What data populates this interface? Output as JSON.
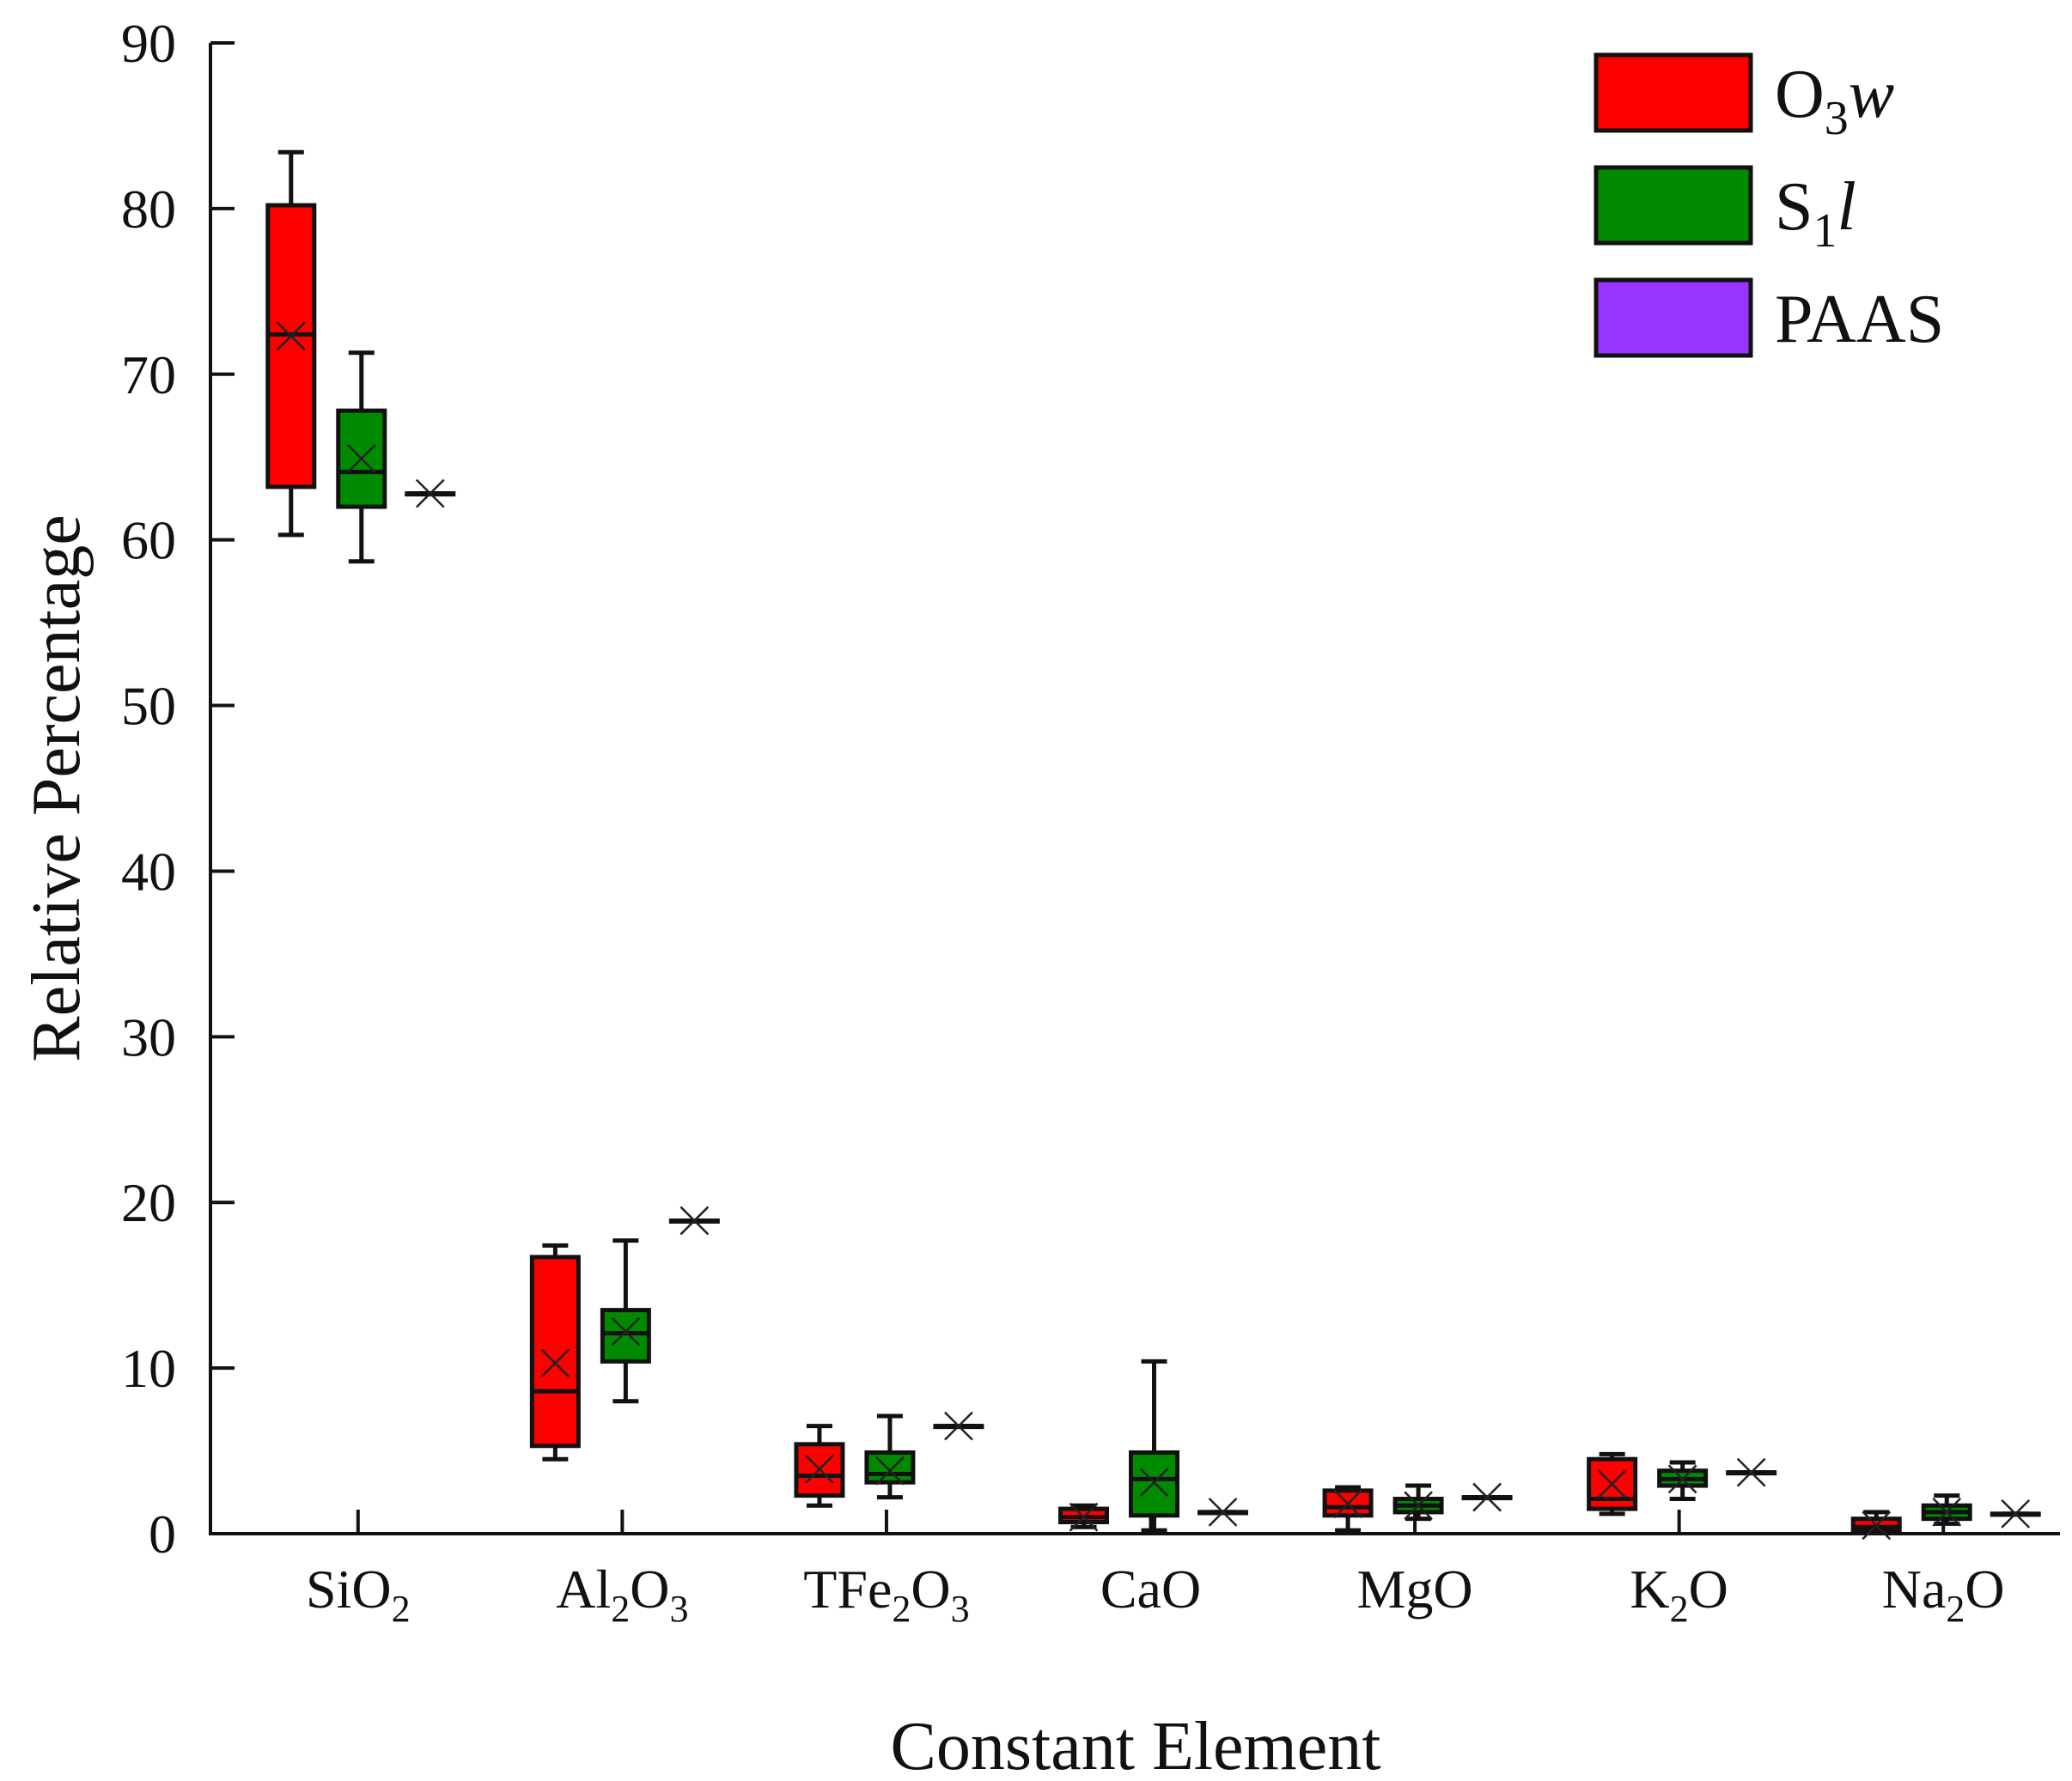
{
  "chart_data": {
    "type": "box",
    "xlabel": "Constant Element",
    "ylabel": "Relative Percentage",
    "ylim": [
      0,
      90
    ],
    "yticks": [
      0,
      10,
      20,
      30,
      40,
      50,
      60,
      70,
      80,
      90
    ],
    "ytick_labels": [
      "0",
      "10",
      "20",
      "30",
      "40",
      "50",
      "60",
      "70",
      "80",
      "90"
    ],
    "grid": false,
    "legend_position": "top-right",
    "categories": [
      {
        "base": "SiO",
        "sub": "2",
        "base2": "",
        "sub2": ""
      },
      {
        "base": "Al",
        "sub": "2",
        "base2": "O",
        "sub2": "3"
      },
      {
        "base": "TFe",
        "sub": "2",
        "base2": "O",
        "sub2": "3"
      },
      {
        "base": "CaO",
        "sub": "",
        "base2": "",
        "sub2": ""
      },
      {
        "base": "MgO",
        "sub": "",
        "base2": "",
        "sub2": ""
      },
      {
        "base": "K",
        "sub": "2",
        "base2": "O",
        "sub2": ""
      },
      {
        "base": "Na",
        "sub": "2",
        "base2": "O",
        "sub2": ""
      }
    ],
    "series": [
      {
        "name": "O3w",
        "legend": {
          "base": "O",
          "sub": "3",
          "italic": "w"
        },
        "color": "#ff0000",
        "boxes": [
          {
            "min": 60.3,
            "q1": 63.2,
            "median": 72.4,
            "q3": 80.2,
            "max": 83.4,
            "mean": 72.3
          },
          {
            "min": 4.5,
            "q1": 5.3,
            "median": 8.6,
            "q3": 16.7,
            "max": 17.4,
            "mean": 10.3
          },
          {
            "min": 1.7,
            "q1": 2.3,
            "median": 3.5,
            "q3": 5.4,
            "max": 6.5,
            "mean": 3.9
          },
          {
            "min": 0.4,
            "q1": 0.7,
            "median": 1.0,
            "q3": 1.5,
            "max": 1.7,
            "mean": 1.0
          },
          {
            "min": 0.2,
            "q1": 1.1,
            "median": 1.6,
            "q3": 2.6,
            "max": 2.8,
            "mean": 1.8
          },
          {
            "min": 1.2,
            "q1": 1.5,
            "median": 2.1,
            "q3": 4.5,
            "max": 4.8,
            "mean": 3.0
          },
          {
            "min": 0.1,
            "q1": 0.2,
            "median": 0.4,
            "q3": 0.9,
            "max": 1.3,
            "mean": 0.5
          }
        ]
      },
      {
        "name": "S1l",
        "legend": {
          "base": "S",
          "sub": "1",
          "italic": "l"
        },
        "color": "#008a00",
        "boxes": [
          {
            "min": 58.7,
            "q1": 62.0,
            "median": 64.1,
            "q3": 67.8,
            "max": 71.3,
            "mean": 64.9
          },
          {
            "min": 8.0,
            "q1": 10.4,
            "median": 12.1,
            "q3": 13.5,
            "max": 17.7,
            "mean": 12.2
          },
          {
            "min": 2.2,
            "q1": 3.1,
            "median": 3.6,
            "q3": 4.9,
            "max": 7.1,
            "mean": 3.8
          },
          {
            "min": 0.2,
            "q1": 1.1,
            "median": 3.3,
            "q3": 4.9,
            "max": 10.4,
            "mean": 3.1
          },
          {
            "min": 0.9,
            "q1": 1.3,
            "median": 1.7,
            "q3": 2.1,
            "max": 2.9,
            "mean": 1.7
          },
          {
            "min": 2.1,
            "q1": 2.9,
            "median": 3.3,
            "q3": 3.8,
            "max": 4.3,
            "mean": 3.3
          },
          {
            "min": 0.6,
            "q1": 0.9,
            "median": 1.3,
            "q3": 1.7,
            "max": 2.3,
            "mean": 1.3
          }
        ]
      },
      {
        "name": "PAAS",
        "legend": {
          "base": "PAAS",
          "sub": "",
          "italic": ""
        },
        "color": "#9933ff",
        "boxes": [
          {
            "min": 62.8,
            "q1": 62.8,
            "median": 62.8,
            "q3": 62.8,
            "max": 62.8,
            "mean": 62.8
          },
          {
            "min": 18.9,
            "q1": 18.9,
            "median": 18.9,
            "q3": 18.9,
            "max": 18.9,
            "mean": 18.9
          },
          {
            "min": 6.5,
            "q1": 6.5,
            "median": 6.5,
            "q3": 6.5,
            "max": 6.5,
            "mean": 6.5
          },
          {
            "min": 1.3,
            "q1": 1.3,
            "median": 1.3,
            "q3": 1.3,
            "max": 1.3,
            "mean": 1.3
          },
          {
            "min": 2.2,
            "q1": 2.2,
            "median": 2.2,
            "q3": 2.2,
            "max": 2.2,
            "mean": 2.2
          },
          {
            "min": 3.7,
            "q1": 3.7,
            "median": 3.7,
            "q3": 3.7,
            "max": 3.7,
            "mean": 3.7
          },
          {
            "min": 1.2,
            "q1": 1.2,
            "median": 1.2,
            "q3": 1.2,
            "max": 1.2,
            "mean": 1.2
          }
        ]
      }
    ]
  }
}
